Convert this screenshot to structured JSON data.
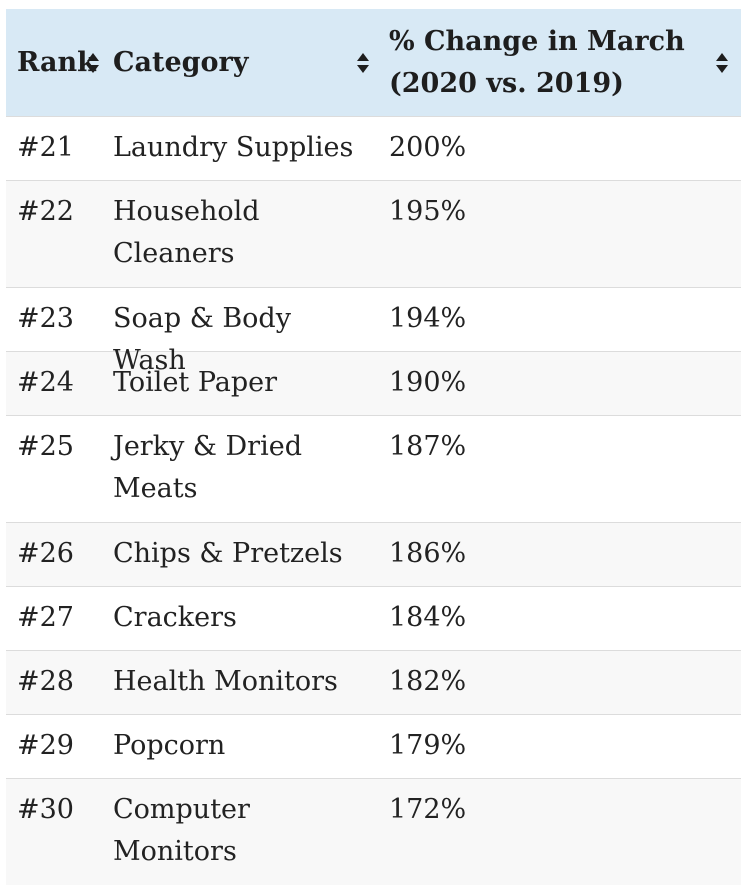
{
  "table": {
    "headers": {
      "rank": "Rank",
      "category": "Category",
      "change": "% Change in March (2020 vs. 2019)"
    },
    "rows": [
      {
        "rank": "#21",
        "category": "Laundry Supplies",
        "change": "200%"
      },
      {
        "rank": "#22",
        "category": "Household Cleaners",
        "change": "195%"
      },
      {
        "rank": "#23",
        "category": "Soap & Body Wash",
        "change": "194%"
      },
      {
        "rank": "#24",
        "category": "Toilet Paper",
        "change": "190%"
      },
      {
        "rank": "#25",
        "category": "Jerky & Dried Meats",
        "change": "187%"
      },
      {
        "rank": "#26",
        "category": "Chips & Pretzels",
        "change": "186%"
      },
      {
        "rank": "#27",
        "category": "Crackers",
        "change": "184%"
      },
      {
        "rank": "#28",
        "category": "Health Monitors",
        "change": "182%"
      },
      {
        "rank": "#29",
        "category": "Popcorn",
        "change": "179%"
      },
      {
        "rank": "#30",
        "category": "Computer Monitors",
        "change": "172%"
      }
    ]
  },
  "colors": {
    "header_bg": "#d8e9f5",
    "alt_row_bg": "#f8f8f8",
    "border": "#dcdcdc",
    "text": "#222222"
  },
  "icons": {
    "sort": "sort-updown-icon"
  }
}
